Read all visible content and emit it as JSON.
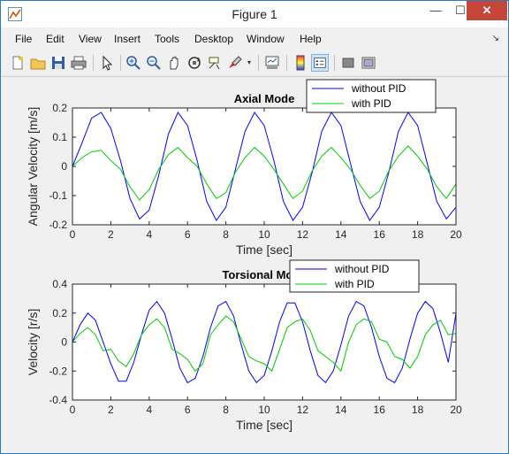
{
  "window": {
    "title": "Figure 1"
  },
  "menu": [
    "File",
    "Edit",
    "View",
    "Insert",
    "Tools",
    "Desktop",
    "Window",
    "Help"
  ],
  "toolbar_icons": [
    "new-figure-icon",
    "open-file-icon",
    "save-icon",
    "print-icon",
    "pointer-icon",
    "zoom-in-icon",
    "zoom-out-icon",
    "pan-icon",
    "rotate-3d-icon",
    "data-cursor-icon",
    "brush-icon",
    "link-plot-icon",
    "colorbar-icon",
    "legend-icon",
    "hide-plot-tools-icon",
    "show-plot-tools-icon"
  ],
  "colors": {
    "without_pid": "#0000ff",
    "with_pid": "#00cc00"
  },
  "chart_data": [
    {
      "type": "line",
      "title": "Axial Mode",
      "xlabel": "Time [sec]",
      "ylabel": "Angular Velocity [m/s]",
      "xlim": [
        0,
        20
      ],
      "ylim": [
        -0.2,
        0.2
      ],
      "xticks": [
        "0",
        "2",
        "4",
        "6",
        "8",
        "10",
        "12",
        "14",
        "16",
        "18",
        "20"
      ],
      "yticks": [
        "-0.2",
        "-0.1",
        "0",
        "0.1",
        "0.2"
      ],
      "ytick_values": [
        -0.2,
        -0.1,
        0,
        0.1,
        0.2
      ],
      "legend": "top-right",
      "series": [
        {
          "name": "without PID",
          "x": [
            0,
            0.5,
            1,
            1.5,
            2,
            2.5,
            3,
            3.5,
            4,
            4.5,
            5,
            5.5,
            6,
            6.5,
            7,
            7.5,
            8,
            8.5,
            9,
            9.5,
            10,
            10.5,
            11,
            11.5,
            12,
            12.5,
            13,
            13.5,
            14,
            14.5,
            15,
            15.5,
            16,
            16.5,
            17,
            17.5,
            18,
            18.5,
            19,
            19.5,
            20
          ],
          "y": [
            0,
            0.08,
            0.165,
            0.185,
            0.13,
            0.02,
            -0.11,
            -0.18,
            -0.15,
            -0.03,
            0.11,
            0.185,
            0.14,
            0.02,
            -0.12,
            -0.185,
            -0.14,
            -0.01,
            0.12,
            0.185,
            0.14,
            0.02,
            -0.12,
            -0.185,
            -0.14,
            -0.02,
            0.12,
            0.185,
            0.14,
            0.01,
            -0.12,
            -0.185,
            -0.14,
            -0.02,
            0.12,
            0.185,
            0.14,
            0.01,
            -0.12,
            -0.18,
            -0.14
          ]
        },
        {
          "name": "with PID",
          "x": [
            0,
            0.5,
            1,
            1.5,
            2,
            2.5,
            3,
            3.5,
            4,
            4.5,
            5,
            5.5,
            6,
            6.5,
            7,
            7.5,
            8,
            8.5,
            9,
            9.5,
            10,
            10.5,
            11,
            11.5,
            12,
            12.5,
            13,
            13.5,
            14,
            14.5,
            15,
            15.5,
            16,
            16.5,
            17,
            17.5,
            18,
            18.5,
            19,
            19.5,
            20
          ],
          "y": [
            0,
            0.03,
            0.05,
            0.055,
            0.02,
            -0.01,
            -0.07,
            -0.115,
            -0.08,
            -0.01,
            0.04,
            0.065,
            0.03,
            0.0,
            -0.06,
            -0.11,
            -0.09,
            -0.02,
            0.03,
            0.065,
            0.035,
            -0.01,
            -0.06,
            -0.11,
            -0.085,
            -0.015,
            0.035,
            0.065,
            0.03,
            -0.01,
            -0.065,
            -0.11,
            -0.085,
            -0.015,
            0.035,
            0.07,
            0.035,
            -0.01,
            -0.07,
            -0.11,
            -0.06
          ]
        }
      ]
    },
    {
      "type": "line",
      "title": "Torsional Mode",
      "xlabel": "Time [sec]",
      "ylabel": "Velocity [r/s]",
      "xlim": [
        0,
        20
      ],
      "ylim": [
        -0.4,
        0.4
      ],
      "xticks": [
        "0",
        "2",
        "4",
        "6",
        "8",
        "10",
        "12",
        "14",
        "16",
        "18",
        "20"
      ],
      "yticks": [
        "-0.4",
        "-0.2",
        "0",
        "0.2",
        "0.4"
      ],
      "ytick_values": [
        -0.4,
        -0.2,
        0,
        0.2,
        0.4
      ],
      "legend": "top-right",
      "series": [
        {
          "name": "without PID",
          "x": [
            0,
            0.4,
            0.8,
            1.2,
            1.6,
            2,
            2.4,
            2.8,
            3.2,
            3.6,
            4,
            4.4,
            4.8,
            5.2,
            5.6,
            6,
            6.4,
            6.8,
            7.2,
            7.6,
            8,
            8.4,
            8.8,
            9.2,
            9.6,
            10,
            10.4,
            10.8,
            11.2,
            11.6,
            12,
            12.4,
            12.8,
            13.2,
            13.6,
            14,
            14.4,
            14.8,
            15.2,
            15.6,
            16,
            16.4,
            16.8,
            17.2,
            17.6,
            18,
            18.4,
            18.8,
            19.2,
            19.6,
            20
          ],
          "y": [
            0,
            0.12,
            0.2,
            0.15,
            0.0,
            -0.15,
            -0.27,
            -0.27,
            -0.14,
            0.05,
            0.22,
            0.28,
            0.2,
            0.02,
            -0.18,
            -0.28,
            -0.25,
            -0.1,
            0.1,
            0.25,
            0.28,
            0.18,
            -0.02,
            -0.2,
            -0.28,
            -0.23,
            -0.06,
            0.14,
            0.27,
            0.27,
            0.14,
            -0.06,
            -0.23,
            -0.28,
            -0.2,
            -0.02,
            0.18,
            0.28,
            0.25,
            0.1,
            -0.1,
            -0.25,
            -0.28,
            -0.18,
            0.02,
            0.2,
            0.28,
            0.23,
            0.06,
            -0.14,
            0.2
          ]
        },
        {
          "name": "with PID",
          "x": [
            0,
            0.4,
            0.8,
            1.2,
            1.6,
            2,
            2.4,
            2.8,
            3.2,
            3.6,
            4,
            4.4,
            4.8,
            5.2,
            5.6,
            6,
            6.4,
            6.8,
            7.2,
            7.6,
            8,
            8.4,
            8.8,
            9.2,
            9.6,
            10,
            10.4,
            10.8,
            11.2,
            11.6,
            12,
            12.4,
            12.8,
            13.2,
            13.6,
            14,
            14.4,
            14.8,
            15.2,
            15.6,
            16,
            16.4,
            16.8,
            17.2,
            17.6,
            18,
            18.4,
            18.8,
            19.2,
            19.6,
            20
          ],
          "y": [
            0,
            0.06,
            0.1,
            0.05,
            -0.06,
            -0.05,
            -0.13,
            -0.17,
            -0.08,
            0.05,
            0.12,
            0.16,
            0.1,
            -0.05,
            -0.08,
            -0.12,
            -0.2,
            -0.15,
            0.05,
            0.12,
            0.18,
            0.14,
            0.02,
            -0.1,
            -0.13,
            -0.15,
            -0.2,
            -0.05,
            0.1,
            0.14,
            0.16,
            0.08,
            -0.06,
            -0.1,
            -0.14,
            -0.2,
            0.0,
            0.12,
            0.16,
            0.14,
            0.02,
            0.0,
            -0.1,
            -0.12,
            -0.18,
            -0.1,
            0.05,
            0.12,
            0.15,
            0.05,
            0.06
          ]
        }
      ]
    }
  ]
}
